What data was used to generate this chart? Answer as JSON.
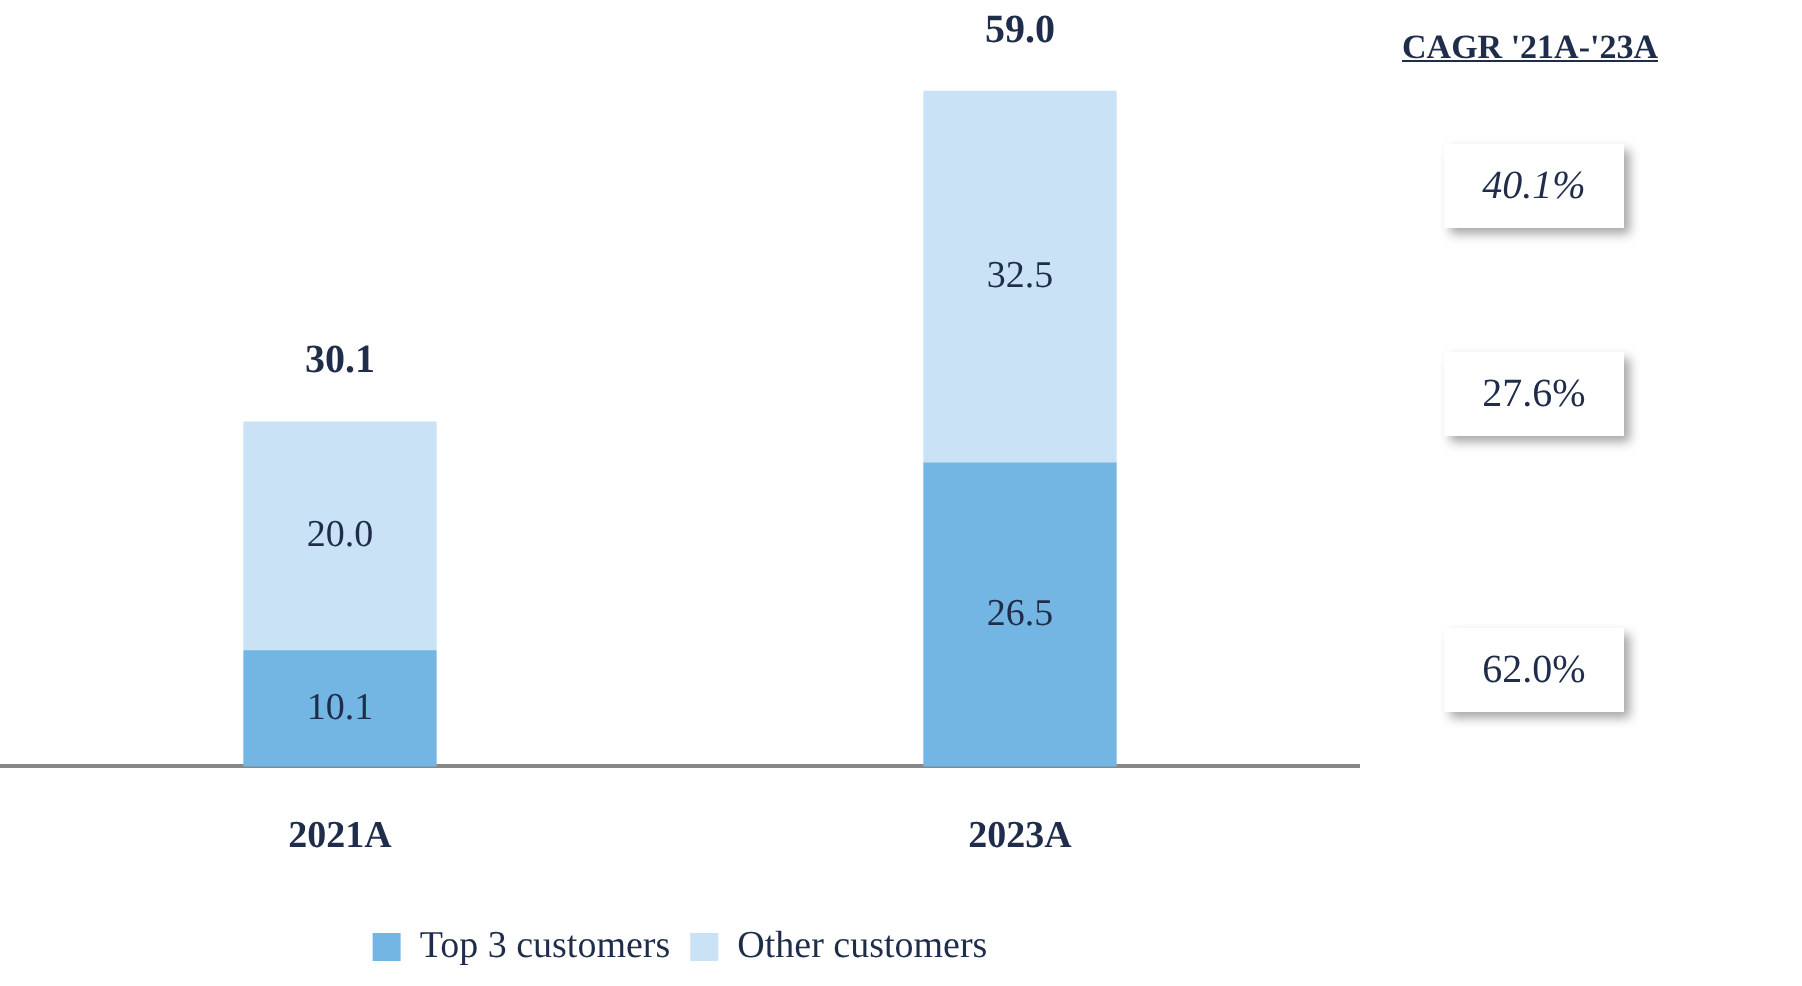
{
  "chart_data": {
    "type": "bar",
    "stacked": true,
    "categories": [
      "2021A",
      "2023A"
    ],
    "series": [
      {
        "name": "Top 3 customers",
        "color": "#74b6e3",
        "values": [
          10.1,
          26.5
        ],
        "value_labels": [
          "10.1",
          "26.5"
        ]
      },
      {
        "name": "Other customers",
        "color": "#c9e2f5",
        "values": [
          20.0,
          32.5
        ],
        "value_labels": [
          "20.0",
          "32.5"
        ]
      }
    ],
    "tick_labels": "x",
    "grid": false,
    "legend": "bottom",
    "totals": [
      "30.1",
      "59.0"
    ],
    "annotations": [
      "CAGR '21A-'23A",
      "40.1%",
      "27.6%",
      "62.0%"
    ]
  }
}
